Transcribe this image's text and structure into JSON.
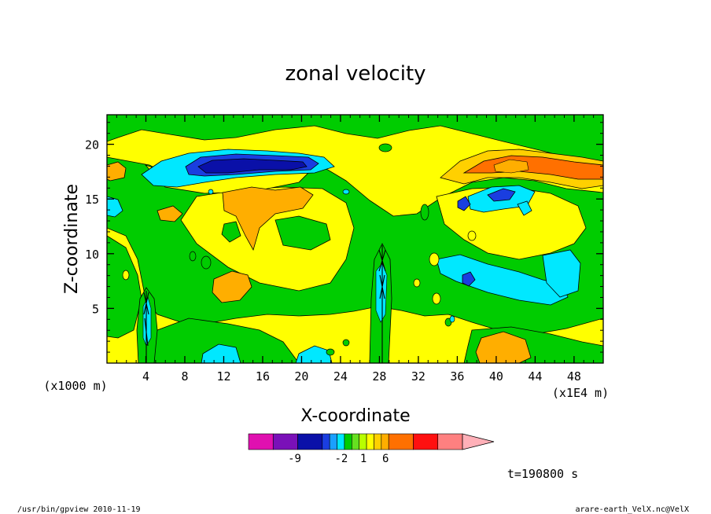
{
  "chart_data": {
    "type": "heatmap",
    "title": "zonal velocity",
    "xlabel": "X-coordinate",
    "ylabel": "Z-coordinate",
    "x_unit": "(x1E4 m)",
    "y_unit": "(x1000 m)",
    "x_range": [
      0,
      51
    ],
    "y_range": [
      0,
      22.7
    ],
    "x_ticks": [
      "4",
      "8",
      "12",
      "16",
      "20",
      "24",
      "28",
      "32",
      "36",
      "40",
      "44",
      "48"
    ],
    "y_ticks": [
      "5",
      "10",
      "15",
      "20"
    ],
    "x_tick_values": [
      4,
      8,
      12,
      16,
      20,
      24,
      28,
      32,
      36,
      40,
      44,
      48
    ],
    "y_tick_values": [
      5,
      10,
      15,
      20
    ],
    "colorbar": {
      "colors": [
        "#e010b0",
        "#7a10b8",
        "#0a10a8",
        "#1a3ee0",
        "#1aa0ff",
        "#00e8ff",
        "#00cc00",
        "#66e020",
        "#b8ff00",
        "#ffff00",
        "#ffd000",
        "#ffae00",
        "#ff7000",
        "#ff1010",
        "#ff8080",
        "#ffb0b8"
      ],
      "labels": [
        "-9",
        "-2",
        "1",
        "6"
      ],
      "label_positions": [
        -9,
        -2,
        1,
        6
      ],
      "value_min": -12,
      "value_max": 12
    },
    "features": [
      {
        "name": "jet-negative-core",
        "x": [
          9,
          22
        ],
        "z": [
          16.5,
          19.5
        ],
        "value": -9
      },
      {
        "name": "positive-core-east",
        "x": [
          37,
          50
        ],
        "z": [
          16.5,
          19
        ],
        "value": 6
      },
      {
        "name": "negative-lobe-east",
        "x": [
          35,
          45
        ],
        "z": [
          4,
          9
        ],
        "value": -3
      },
      {
        "name": "positive-blob-mid",
        "x": [
          11,
          19
        ],
        "z": [
          12,
          16
        ],
        "value": 2
      }
    ]
  },
  "time_label": "t=190800 s",
  "footer": {
    "left": "/usr/bin/gpview   2010-11-19",
    "right": "arare-earth_VelX.nc@VelX"
  },
  "colors": {
    "background": "#ffffff",
    "frame": "#000000"
  }
}
